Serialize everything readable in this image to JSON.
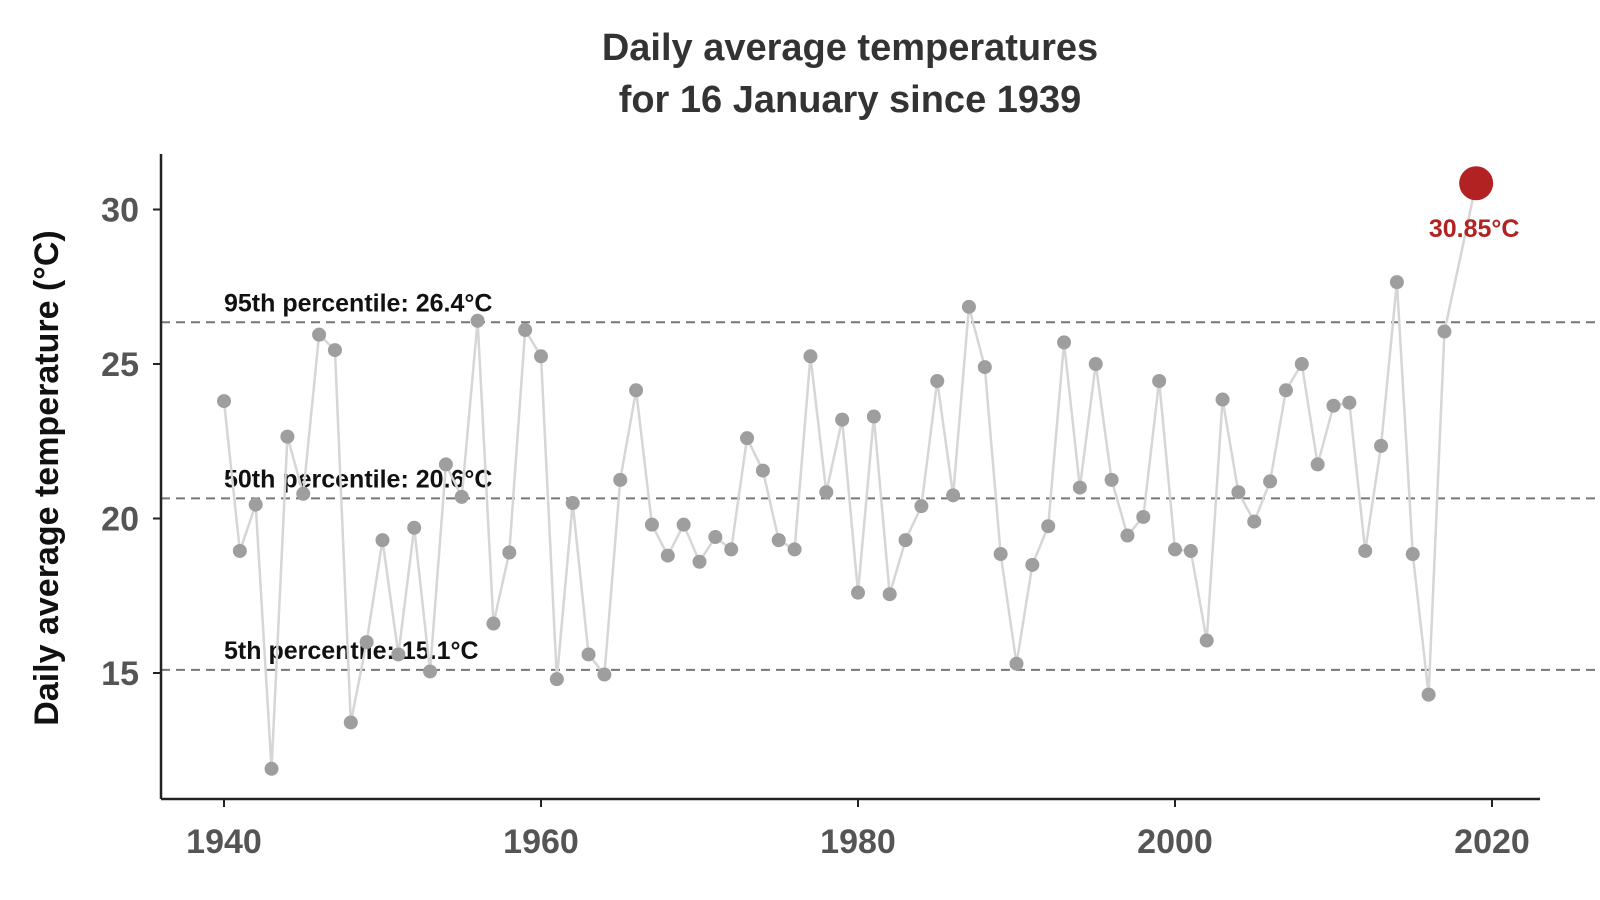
{
  "chart_data": {
    "type": "line",
    "title_lines": [
      "Daily average temperatures",
      "for 16 January since 1939"
    ],
    "ylabel": "Daily average temperature (°C)",
    "xlabel": "",
    "xlim": [
      1936,
      2023
    ],
    "ylim": [
      10.2,
      32
    ],
    "x_ticks": [
      "1940",
      "1960",
      "1980",
      "2000",
      "2020"
    ],
    "y_ticks": [
      "15",
      "20",
      "25",
      "30"
    ],
    "grid": false,
    "colors": {
      "line": "#d6d6d6",
      "point": "#9e9e9e",
      "highlight": "#b22222",
      "reference": "#777777",
      "axis": "#222222"
    },
    "reference_lines": [
      {
        "label": "95th percentile:  26.4°C",
        "value": 26.35
      },
      {
        "label": "50th percentile:  20.6°C",
        "value": 20.65
      },
      {
        "label": "5th percentile:  15.1°C",
        "value": 15.1
      }
    ],
    "series": [
      {
        "x": [
          1940,
          1941,
          1942,
          1943,
          1944,
          1945,
          1946,
          1947,
          1948,
          1949,
          1950,
          1951,
          1952,
          1953,
          1954,
          1955,
          1956,
          1957,
          1958,
          1959,
          1960,
          1961,
          1962,
          1963,
          1964,
          1965,
          1966,
          1967,
          1968,
          1969,
          1970,
          1971,
          1972,
          1973,
          1974,
          1975,
          1976,
          1977,
          1978,
          1979,
          1980,
          1981,
          1982,
          1983,
          1984,
          1985,
          1986,
          1987,
          1988,
          1989,
          1990,
          1991,
          1992,
          1993,
          1994,
          1995,
          1996,
          1997,
          1998,
          1999,
          2000,
          2001,
          2002,
          2003,
          2004,
          2005,
          2006,
          2007,
          2008,
          2009,
          2010,
          2011,
          2012,
          2013,
          2014,
          2015,
          2016,
          2017,
          2019
        ],
        "y": [
          23.8,
          18.95,
          20.45,
          11.9,
          22.65,
          20.8,
          25.95,
          25.45,
          13.4,
          16.0,
          19.3,
          15.6,
          19.7,
          15.05,
          21.75,
          20.7,
          26.4,
          16.6,
          18.9,
          26.1,
          25.25,
          14.8,
          20.5,
          15.6,
          14.95,
          21.25,
          24.15,
          19.8,
          18.8,
          19.8,
          18.6,
          19.4,
          19.0,
          22.6,
          21.55,
          19.3,
          19.0,
          25.25,
          20.85,
          23.2,
          17.6,
          23.3,
          17.55,
          19.3,
          20.4,
          24.45,
          20.75,
          26.85,
          24.9,
          18.85,
          15.3,
          18.5,
          19.75,
          25.7,
          21.0,
          25.0,
          21.25,
          19.45,
          20.05,
          24.45,
          19.0,
          18.95,
          16.05,
          23.85,
          20.85,
          19.9,
          21.2,
          24.15,
          25.0,
          21.75,
          23.65,
          23.75,
          18.95,
          22.35,
          27.65,
          18.85,
          14.3,
          26.05,
          30.85
        ]
      }
    ],
    "highlight": {
      "x": 2019,
      "y": 30.85,
      "label": "30.85°C"
    }
  }
}
